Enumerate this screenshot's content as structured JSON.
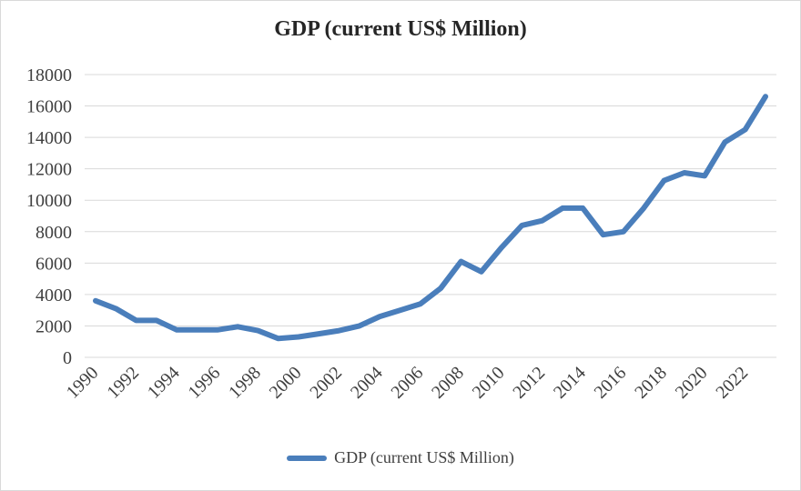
{
  "chart_data": {
    "type": "line",
    "title": "GDP (current US$ Million)",
    "xlabel": "",
    "ylabel": "",
    "ylim": [
      0,
      18000
    ],
    "yticks": [
      0,
      2000,
      4000,
      6000,
      8000,
      10000,
      12000,
      14000,
      16000,
      18000
    ],
    "xticks": [
      1990,
      1992,
      1994,
      1996,
      1998,
      2000,
      2002,
      2004,
      2006,
      2008,
      2010,
      2012,
      2014,
      2016,
      2018,
      2020,
      2022
    ],
    "x": [
      1990,
      1991,
      1992,
      1993,
      1994,
      1995,
      1996,
      1997,
      1998,
      1999,
      2000,
      2001,
      2002,
      2003,
      2004,
      2005,
      2006,
      2007,
      2008,
      2009,
      2010,
      2011,
      2012,
      2013,
      2014,
      2015,
      2016,
      2017,
      2018,
      2019,
      2020,
      2021,
      2022,
      2023
    ],
    "series": [
      {
        "name": "GDP (current US$ Million)",
        "color": "#4a7ebb",
        "values": [
          3600,
          3100,
          2350,
          2350,
          1750,
          1750,
          1750,
          1950,
          1700,
          1200,
          1300,
          1500,
          1700,
          2000,
          2600,
          3000,
          3400,
          4400,
          6100,
          5450,
          7000,
          8400,
          8700,
          9500,
          9500,
          7800,
          8000,
          9500,
          11250,
          11750,
          11550,
          13700,
          14500,
          16600
        ]
      }
    ],
    "grid": true,
    "legend": "bottom"
  }
}
